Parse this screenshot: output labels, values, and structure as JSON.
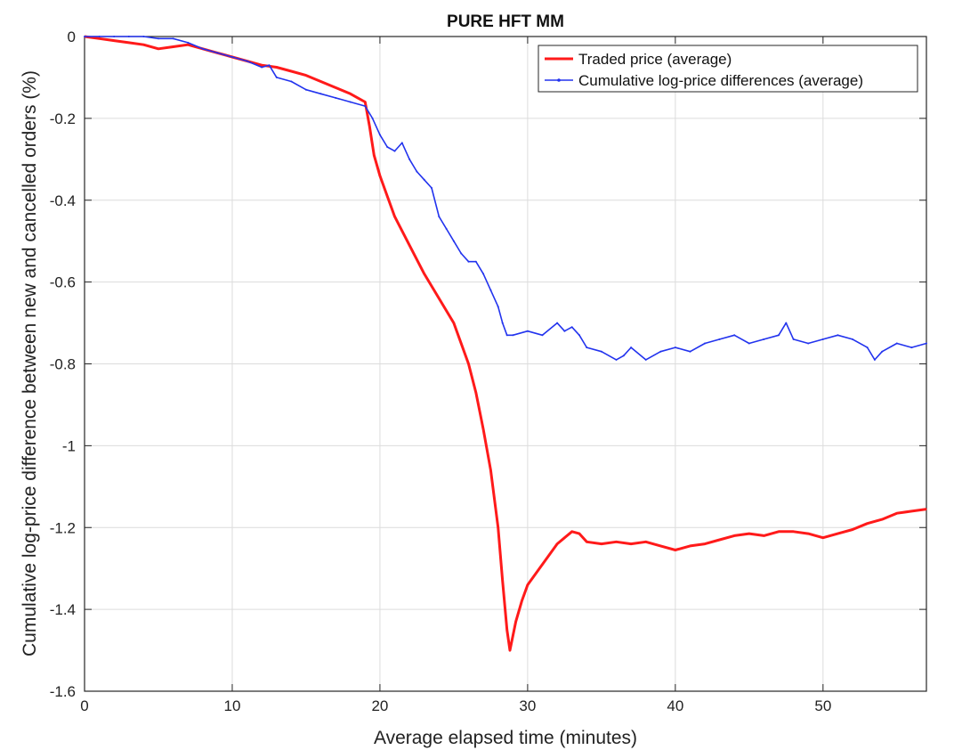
{
  "chart_data": {
    "type": "line",
    "title": "PURE HFT MM",
    "xlabel": "Average elapsed time (minutes)",
    "ylabel": "Cumulative log-price difference between new and cancelled orders (%)",
    "xlim": [
      0,
      57
    ],
    "ylim": [
      -1.6,
      0
    ],
    "xticks": [
      0,
      10,
      20,
      30,
      40,
      50
    ],
    "xtick_labels": [
      "0",
      "10",
      "20",
      "30",
      "40",
      "50"
    ],
    "yticks": [
      0,
      -0.2,
      -0.4,
      -0.6,
      -0.8,
      -1,
      -1.2,
      -1.4,
      -1.6
    ],
    "ytick_labels": [
      "0",
      "-0.2",
      "-0.4",
      "-0.6",
      "-0.8",
      "-1",
      "-1.2",
      "-1.4",
      "-1.6"
    ],
    "grid": true,
    "legend_position": "top-right",
    "series": [
      {
        "name": "Traded price (average)",
        "color": "#ff1a1a",
        "x": [
          0,
          1,
          2,
          3,
          4,
          5,
          6,
          7,
          8,
          9,
          10,
          11,
          12,
          13,
          14,
          15,
          16,
          17,
          18,
          18.5,
          19,
          19.3,
          19.6,
          20,
          20.5,
          21,
          22,
          23,
          24,
          25,
          26,
          26.5,
          27,
          27.5,
          28,
          28.3,
          28.6,
          28.8,
          29.2,
          29.6,
          30,
          31,
          32,
          33,
          33.5,
          34,
          35,
          36,
          37,
          38,
          39,
          40,
          41,
          42,
          43,
          44,
          45,
          46,
          47,
          48,
          49,
          50,
          51,
          52,
          53,
          54,
          55,
          56,
          57
        ],
        "y": [
          0,
          -0.005,
          -0.01,
          -0.015,
          -0.02,
          -0.03,
          -0.025,
          -0.02,
          -0.03,
          -0.04,
          -0.05,
          -0.06,
          -0.07,
          -0.075,
          -0.085,
          -0.095,
          -0.11,
          -0.125,
          -0.14,
          -0.15,
          -0.16,
          -0.22,
          -0.29,
          -0.34,
          -0.39,
          -0.44,
          -0.51,
          -0.58,
          -0.64,
          -0.7,
          -0.8,
          -0.87,
          -0.96,
          -1.06,
          -1.2,
          -1.33,
          -1.45,
          -1.5,
          -1.43,
          -1.38,
          -1.34,
          -1.29,
          -1.24,
          -1.21,
          -1.215,
          -1.235,
          -1.24,
          -1.235,
          -1.24,
          -1.235,
          -1.245,
          -1.255,
          -1.245,
          -1.24,
          -1.23,
          -1.22,
          -1.215,
          -1.22,
          -1.21,
          -1.21,
          -1.215,
          -1.225,
          -1.215,
          -1.205,
          -1.19,
          -1.18,
          -1.165,
          -1.16,
          -1.155
        ]
      },
      {
        "name": "Cumulative log-price differences (average)",
        "color": "#2233ee",
        "x": [
          0,
          1,
          2,
          3,
          4,
          5,
          6,
          7,
          8,
          9,
          10,
          11,
          12,
          12.5,
          13,
          14,
          15,
          16,
          17,
          18,
          19,
          19.5,
          20,
          20.5,
          21,
          21.5,
          22,
          22.5,
          23,
          23.5,
          24,
          24.5,
          25,
          25.5,
          26,
          26.5,
          27,
          27.5,
          28,
          28.3,
          28.6,
          29,
          30,
          31,
          32,
          32.5,
          33,
          33.5,
          34,
          35,
          36,
          36.5,
          37,
          38,
          39,
          40,
          41,
          42,
          43,
          44,
          45,
          46,
          47,
          47.5,
          48,
          49,
          50,
          51,
          52,
          53,
          53.5,
          54,
          55,
          56,
          57
        ],
        "y": [
          0,
          0,
          0,
          0,
          0,
          -0.005,
          -0.005,
          -0.015,
          -0.03,
          -0.04,
          -0.05,
          -0.06,
          -0.075,
          -0.07,
          -0.1,
          -0.11,
          -0.13,
          -0.14,
          -0.15,
          -0.16,
          -0.17,
          -0.2,
          -0.24,
          -0.27,
          -0.28,
          -0.26,
          -0.3,
          -0.33,
          -0.35,
          -0.37,
          -0.44,
          -0.47,
          -0.5,
          -0.53,
          -0.55,
          -0.55,
          -0.58,
          -0.62,
          -0.66,
          -0.7,
          -0.73,
          -0.73,
          -0.72,
          -0.73,
          -0.7,
          -0.72,
          -0.71,
          -0.73,
          -0.76,
          -0.77,
          -0.79,
          -0.78,
          -0.76,
          -0.79,
          -0.77,
          -0.76,
          -0.77,
          -0.75,
          -0.74,
          -0.73,
          -0.75,
          -0.74,
          -0.73,
          -0.7,
          -0.74,
          -0.75,
          -0.74,
          -0.73,
          -0.74,
          -0.76,
          -0.79,
          -0.77,
          -0.75,
          -0.76,
          -0.75
        ]
      }
    ]
  }
}
